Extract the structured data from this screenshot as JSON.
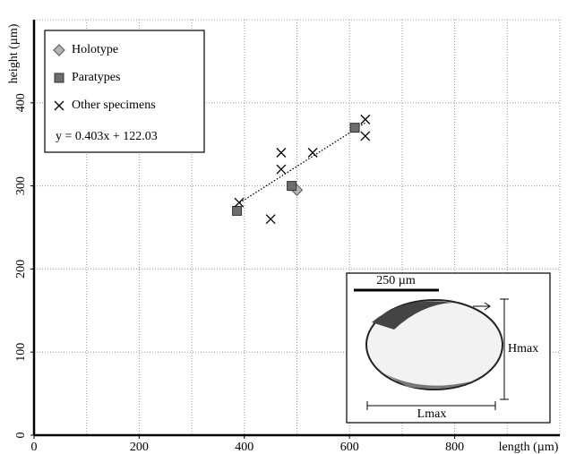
{
  "chart_data": {
    "type": "scatter",
    "xlabel": "length (µm)",
    "ylabel": "height (µm)",
    "xlim": [
      0,
      1000
    ],
    "ylim": [
      0,
      500
    ],
    "xticks": [
      0,
      200,
      400,
      600,
      800
    ],
    "yticks": [
      0,
      100,
      200,
      300,
      400
    ],
    "grid": true,
    "legend": "upper left",
    "series": [
      {
        "name": "Holotype",
        "color": "#b4b4b4",
        "marker": "diamond",
        "x": [
          500
        ],
        "values": [
          295
        ]
      },
      {
        "name": "Paratypes",
        "color": "#6e6e6e",
        "marker": "square",
        "x": [
          386,
          490,
          610
        ],
        "values": [
          270,
          300,
          370
        ]
      },
      {
        "name": "Other specimens",
        "color": "#000000",
        "marker": "x",
        "x": [
          390,
          470,
          470,
          450,
          530,
          630,
          630
        ],
        "values": [
          280,
          340,
          320,
          260,
          340,
          380,
          360
        ]
      }
    ],
    "trendline": {
      "label": "y = 0.403x + 122.03",
      "slope": 0.403,
      "intercept": 122.03
    },
    "inset": {
      "scale_bar": "250 µm",
      "height_label": "Hmax",
      "length_label": "Lmax"
    }
  }
}
